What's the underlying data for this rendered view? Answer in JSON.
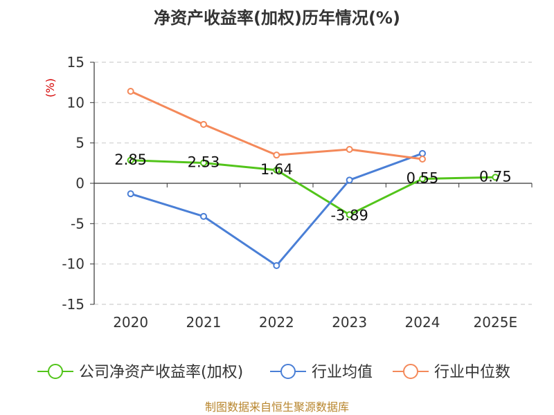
{
  "chart_data": {
    "type": "line",
    "title": "净资产收益率(加权)历年情况(%)",
    "ylabel": "(%)",
    "xlabel": "",
    "categories": [
      "2020",
      "2021",
      "2022",
      "2023",
      "2024",
      "2025E"
    ],
    "ylim": [
      -15,
      15
    ],
    "yticks": [
      15,
      10,
      5,
      0,
      -5,
      -10,
      -15
    ],
    "ytick_labels": [
      "15",
      "10",
      "5",
      "0",
      "-5",
      "-10",
      "-15"
    ],
    "grid": true,
    "legend_position": "bottom",
    "series": [
      {
        "name": "公司净资产收益率(加权)",
        "color": "#52c41a",
        "values": [
          2.85,
          2.53,
          1.64,
          -3.89,
          0.55,
          0.75
        ],
        "labels": [
          "2.85",
          "2.53",
          "1.64",
          "-3.89",
          "0.55",
          "0.75"
        ]
      },
      {
        "name": "行业均值",
        "color": "#4a7fd6",
        "values": [
          -1.3,
          -4.1,
          -10.2,
          0.4,
          3.7,
          null
        ]
      },
      {
        "name": "行业中位数",
        "color": "#f4895a",
        "values": [
          11.4,
          7.3,
          3.5,
          4.2,
          3.0,
          null
        ]
      }
    ]
  },
  "source_text": "制图数据来自恒生聚源数据库"
}
